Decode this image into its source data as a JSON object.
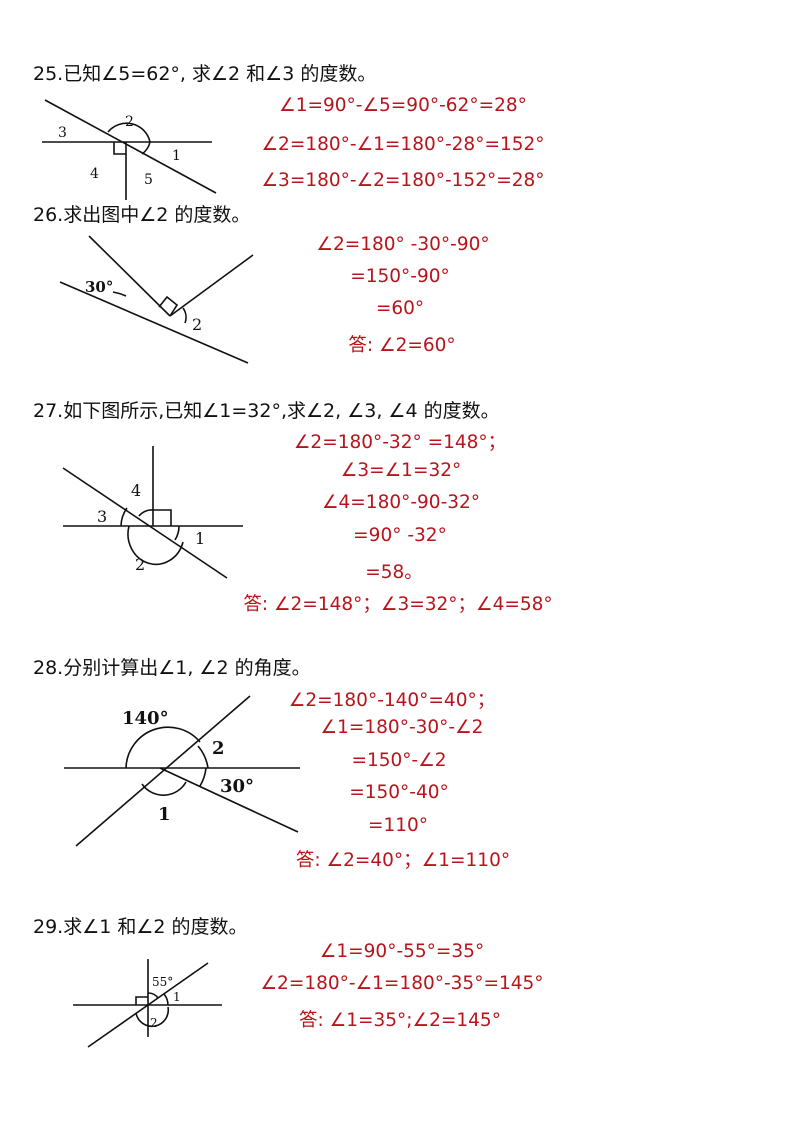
{
  "problems": [
    {
      "question": "25.已知∠5=62°, 求∠2 和∠3 的度数。",
      "figure_labels": [
        "1",
        "2",
        "3",
        "4",
        "5"
      ],
      "answer_lines": [
        "∠1=90°-∠5=90°-62°=28°",
        "∠2=180°-∠1=180°-28°=152°",
        "∠3=180°-∠2=180°-152°=28°"
      ]
    },
    {
      "question": "26.求出图中∠2 的度数。",
      "figure_labels": [
        "30°",
        "2"
      ],
      "answer_lines": [
        "∠2=180° -30°-90°",
        "=150°-90°",
        "=60°",
        "答: ∠2=60°"
      ]
    },
    {
      "question": "27.如下图所示,已知∠1=32°,求∠2, ∠3, ∠4 的度数。",
      "figure_labels": [
        "1",
        "2",
        "3",
        "4"
      ],
      "answer_lines": [
        "∠2=180°-32° =148°；",
        "∠3=∠1=32°",
        "∠4=180°-90-32°",
        "=90° -32°",
        "=58。",
        "答: ∠2=148°；∠3=32°；∠4=58°"
      ]
    },
    {
      "question": "28.分别计算出∠1, ∠2 的角度。",
      "figure_labels": [
        "140°",
        "2",
        "30°",
        "1"
      ],
      "answer_lines": [
        "∠2=180°-140°=40°；",
        "∠1=180°-30°-∠2",
        "=150°-∠2",
        "=150°-40°",
        "=110°",
        "答: ∠2=40°；∠1=110°"
      ]
    },
    {
      "question": "29.求∠1 和∠2 的度数。",
      "figure_labels": [
        "55°",
        "1",
        "2"
      ],
      "answer_lines": [
        "∠1=90°-55°=35°",
        "∠2=180°-∠1=180°-35°=145°",
        "答: ∠1=35°;∠2=145°"
      ]
    }
  ]
}
